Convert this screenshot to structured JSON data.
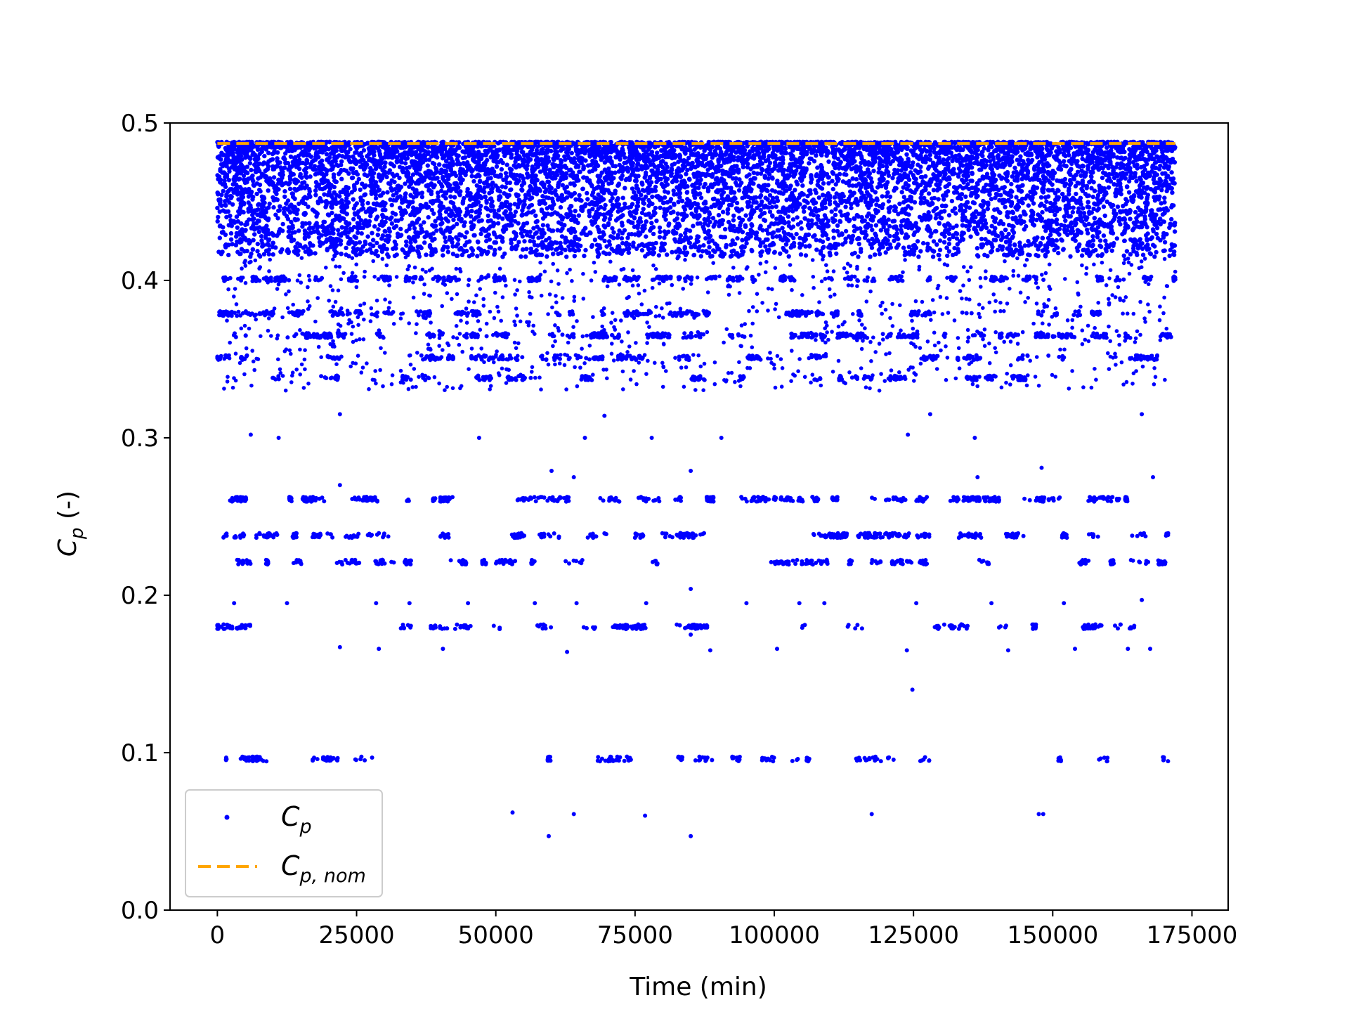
{
  "chart_data": {
    "type": "scatter",
    "xlabel": "Time (min)",
    "ylabel_main": "C",
    "ylabel_sub": "p",
    "ylabel_suffix": " (-)",
    "xlim": [
      -8500,
      181500
    ],
    "ylim": [
      0.0,
      0.5
    ],
    "x_ticks": [
      0,
      25000,
      50000,
      75000,
      100000,
      125000,
      150000,
      175000
    ],
    "x_tick_labels": [
      "0",
      "25000",
      "50000",
      "75000",
      "100000",
      "125000",
      "150000",
      "175000"
    ],
    "y_ticks": [
      0.0,
      0.1,
      0.2,
      0.3,
      0.4,
      0.5
    ],
    "y_tick_labels": [
      "0.0",
      "0.1",
      "0.2",
      "0.3",
      "0.4",
      "0.5"
    ],
    "grid": false,
    "legend_position": "bottom-left",
    "series": [
      {
        "name": "C_p",
        "legend_main": "C",
        "legend_sub": "p",
        "kind": "scatter",
        "color": "#0000ff",
        "x_range": [
          0,
          172000
        ],
        "dense_band": [
          0.415,
          0.488
        ],
        "bands": [
          {
            "y": 0.401,
            "density": 0.55
          },
          {
            "y": 0.379,
            "density": 0.5
          },
          {
            "y": 0.365,
            "density": 0.6
          },
          {
            "y": 0.351,
            "density": 0.35
          },
          {
            "y": 0.338,
            "density": 0.3
          },
          {
            "y": 0.261,
            "density": 0.6
          },
          {
            "y": 0.238,
            "density": 0.5
          },
          {
            "y": 0.221,
            "density": 0.45
          },
          {
            "y": 0.18,
            "density": 0.35
          },
          {
            "y": 0.096,
            "density": 0.3
          }
        ],
        "sparse_points": [
          [
            6000,
            0.302
          ],
          [
            11000,
            0.3
          ],
          [
            22000,
            0.315
          ],
          [
            47000,
            0.3
          ],
          [
            66000,
            0.3
          ],
          [
            69500,
            0.314
          ],
          [
            78000,
            0.3
          ],
          [
            90500,
            0.3
          ],
          [
            124000,
            0.302
          ],
          [
            128000,
            0.315
          ],
          [
            136000,
            0.3
          ],
          [
            166000,
            0.315
          ],
          [
            60000,
            0.279
          ],
          [
            85000,
            0.279
          ],
          [
            148000,
            0.281
          ],
          [
            64000,
            0.275
          ],
          [
            22000,
            0.27
          ],
          [
            136500,
            0.275
          ],
          [
            168000,
            0.275
          ],
          [
            3000,
            0.195
          ],
          [
            12500,
            0.195
          ],
          [
            28500,
            0.195
          ],
          [
            34500,
            0.195
          ],
          [
            45000,
            0.195
          ],
          [
            57000,
            0.195
          ],
          [
            64500,
            0.195
          ],
          [
            77000,
            0.195
          ],
          [
            85000,
            0.204
          ],
          [
            95000,
            0.195
          ],
          [
            104500,
            0.195
          ],
          [
            109000,
            0.195
          ],
          [
            125500,
            0.195
          ],
          [
            139000,
            0.195
          ],
          [
            152000,
            0.195
          ],
          [
            166000,
            0.197
          ],
          [
            22000,
            0.167
          ],
          [
            29000,
            0.166
          ],
          [
            40500,
            0.166
          ],
          [
            62800,
            0.164
          ],
          [
            88500,
            0.165
          ],
          [
            100500,
            0.166
          ],
          [
            123800,
            0.165
          ],
          [
            142000,
            0.165
          ],
          [
            154000,
            0.166
          ],
          [
            163500,
            0.166
          ],
          [
            167500,
            0.166
          ],
          [
            85000,
            0.175
          ],
          [
            124800,
            0.14
          ],
          [
            53000,
            0.062
          ],
          [
            59500,
            0.047
          ],
          [
            64000,
            0.061
          ],
          [
            76800,
            0.06
          ],
          [
            85000,
            0.047
          ],
          [
            117500,
            0.061
          ],
          [
            147500,
            0.061
          ],
          [
            148300,
            0.061
          ]
        ]
      },
      {
        "name": "C_p,nom",
        "legend_main": "C",
        "legend_sub": "p, nom",
        "kind": "line",
        "style": "dashed",
        "color": "#ffa500",
        "x": [
          0,
          172000
        ],
        "y": [
          0.487,
          0.487
        ]
      }
    ]
  }
}
